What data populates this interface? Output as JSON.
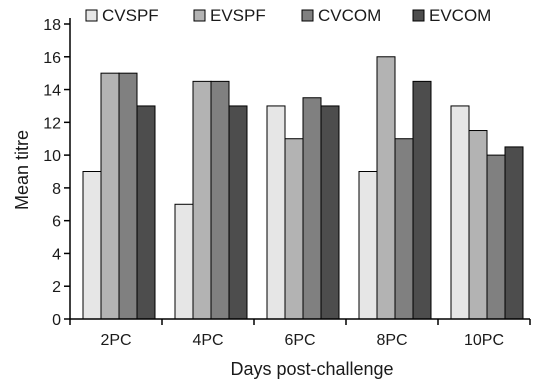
{
  "chart_data": {
    "type": "bar",
    "categories": [
      "2PC",
      "4PC",
      "6PC",
      "8PC",
      "10PC"
    ],
    "series": [
      {
        "name": "CVSPF",
        "values": [
          9,
          7,
          13,
          9,
          13
        ],
        "color": "#e6e6e6"
      },
      {
        "name": "EVSPF",
        "values": [
          15,
          14.5,
          11,
          16,
          11.5
        ],
        "color": "#b3b3b3"
      },
      {
        "name": "CVCOM",
        "values": [
          15,
          14.5,
          13.5,
          11,
          10
        ],
        "color": "#808080"
      },
      {
        "name": "EVCOM",
        "values": [
          13,
          13,
          13,
          14.5,
          10.5
        ],
        "color": "#4d4d4d"
      }
    ],
    "xlabel": "Days post-challenge",
    "ylabel": "Mean titre",
    "ylim": [
      0,
      18
    ],
    "yticks": [
      0,
      2,
      4,
      6,
      8,
      10,
      12,
      14,
      16,
      18
    ],
    "grid": false,
    "legend_position": "top"
  }
}
